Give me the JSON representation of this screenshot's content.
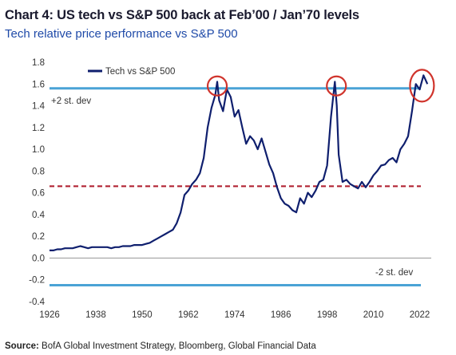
{
  "chart_data": {
    "type": "line",
    "title": "Chart 4: US tech vs S&P 500 back at Feb’00 / Jan’70 levels",
    "subtitle": "Tech relative price performance vs S&P 500",
    "source_label": "Source:",
    "source_text": "BofA Global Investment Strategy, Bloomberg, Global Financial Data",
    "xlim": [
      1926,
      2025
    ],
    "ylim": [
      -0.4,
      1.8
    ],
    "x_ticks": [
      1926,
      1938,
      1950,
      1962,
      1974,
      1986,
      1998,
      2010,
      2022
    ],
    "y_ticks": [
      -0.4,
      -0.2,
      0.0,
      0.2,
      0.4,
      0.6,
      0.8,
      1.0,
      1.2,
      1.4,
      1.6,
      1.8
    ],
    "y_tick_labels": [
      "-0.4",
      "-0.2",
      "0.0",
      "0.2",
      "0.4",
      "0.6",
      "0.8",
      "1.0",
      "1.2",
      "1.4",
      "1.6",
      "1.8"
    ],
    "legend": {
      "label": "Tech vs  S&P 500",
      "placement": "top-left"
    },
    "series": [
      {
        "name": "Tech vs  S&P 500",
        "color": "#0f1f6e",
        "x": [
          1926,
          1927,
          1928,
          1929,
          1930,
          1931,
          1932,
          1933,
          1934,
          1935,
          1936,
          1937,
          1938,
          1939,
          1940,
          1941,
          1942,
          1943,
          1944,
          1945,
          1946,
          1947,
          1948,
          1949,
          1950,
          1951,
          1952,
          1953,
          1954,
          1955,
          1956,
          1957,
          1958,
          1959,
          1960,
          1961,
          1962,
          1963,
          1964,
          1965,
          1966,
          1967,
          1968,
          1969,
          1969.5,
          1970,
          1971,
          1972,
          1973,
          1974,
          1975,
          1976,
          1977,
          1978,
          1979,
          1980,
          1981,
          1982,
          1983,
          1984,
          1985,
          1986,
          1987,
          1988,
          1989,
          1990,
          1991,
          1992,
          1993,
          1994,
          1995,
          1996,
          1997,
          1998,
          1999,
          2000,
          2000.5,
          2001,
          2002,
          2003,
          2004,
          2005,
          2006,
          2007,
          2008,
          2009,
          2010,
          2011,
          2012,
          2013,
          2014,
          2015,
          2016,
          2017,
          2018,
          2019,
          2020,
          2021,
          2022,
          2023,
          2024
        ],
        "y": [
          0.07,
          0.07,
          0.08,
          0.08,
          0.09,
          0.09,
          0.09,
          0.1,
          0.11,
          0.1,
          0.09,
          0.1,
          0.1,
          0.1,
          0.1,
          0.1,
          0.09,
          0.1,
          0.1,
          0.11,
          0.11,
          0.11,
          0.12,
          0.12,
          0.12,
          0.13,
          0.14,
          0.16,
          0.18,
          0.2,
          0.22,
          0.24,
          0.26,
          0.32,
          0.42,
          0.58,
          0.62,
          0.68,
          0.72,
          0.78,
          0.92,
          1.2,
          1.38,
          1.5,
          1.62,
          1.45,
          1.35,
          1.55,
          1.48,
          1.3,
          1.36,
          1.2,
          1.05,
          1.12,
          1.08,
          1.0,
          1.1,
          0.98,
          0.86,
          0.78,
          0.65,
          0.55,
          0.5,
          0.48,
          0.44,
          0.42,
          0.55,
          0.5,
          0.6,
          0.56,
          0.62,
          0.7,
          0.72,
          0.85,
          1.3,
          1.62,
          1.4,
          0.95,
          0.7,
          0.72,
          0.68,
          0.66,
          0.64,
          0.7,
          0.65,
          0.7,
          0.76,
          0.8,
          0.85,
          0.86,
          0.9,
          0.92,
          0.88,
          1.0,
          1.05,
          1.12,
          1.35,
          1.6,
          1.55,
          1.68,
          1.6
        ]
      }
    ],
    "reference_lines": [
      {
        "name": "+2 st. dev",
        "value": 1.56,
        "color": "#4aa3d6",
        "style": "solid"
      },
      {
        "name": "-2 st. dev",
        "value": -0.25,
        "color": "#4aa3d6",
        "style": "solid"
      },
      {
        "name": "",
        "value": 0.66,
        "color": "#b02030",
        "style": "dashed"
      }
    ],
    "highlights": [
      {
        "x": 1969.5,
        "y": 1.56,
        "color": "#d0342c"
      },
      {
        "x": 2000.4,
        "y": 1.56,
        "color": "#d0342c"
      },
      {
        "x": 2022.6,
        "y": 1.57,
        "color": "#d0342c"
      }
    ],
    "annotations": [
      {
        "text": "+2 st. dev"
      },
      {
        "text": "-2 st. dev"
      }
    ],
    "grid": false
  }
}
